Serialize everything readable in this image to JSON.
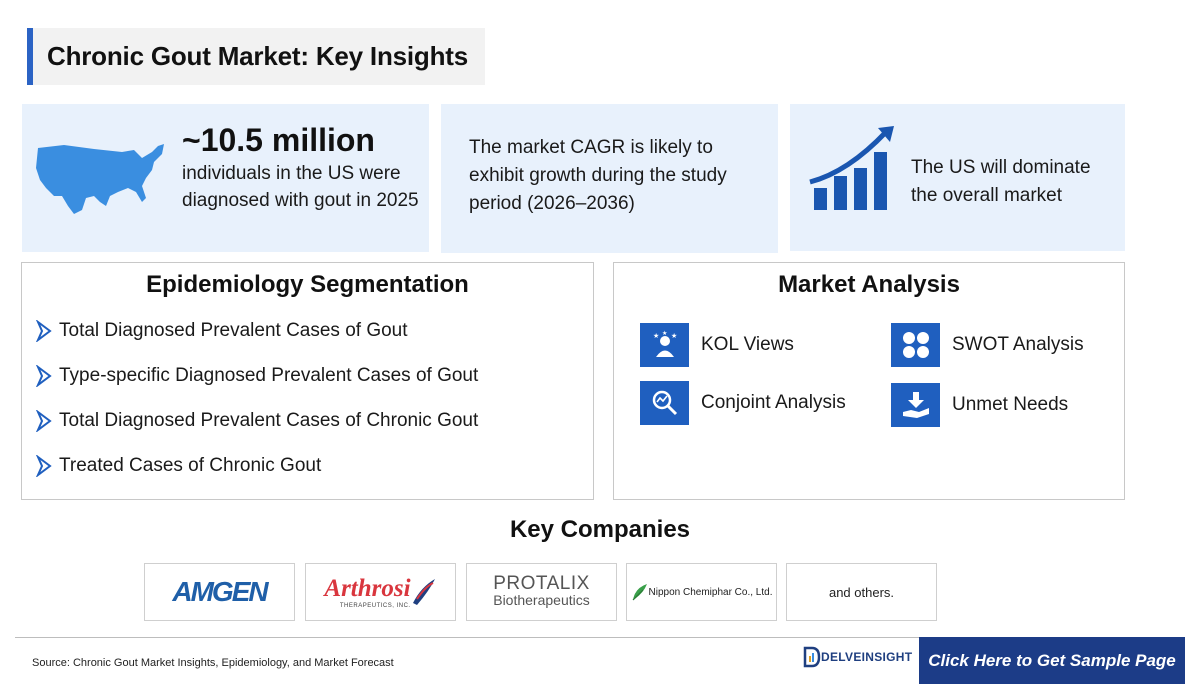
{
  "title": "Chronic Gout Market: Key Insights",
  "stats": {
    "big_number": "~10.5 million",
    "card1_text": "individuals in the US were diagnosed with gout in 2025",
    "card2_text": "The market CAGR is likely to exhibit growth during the study period (2026–2036)",
    "card3_text": "The US will dominate the overall market"
  },
  "epidemiology": {
    "title": "Epidemiology Segmentation",
    "items": [
      "Total Diagnosed Prevalent Cases of Gout",
      "Type-specific Diagnosed Prevalent Cases of Gout",
      "Total Diagnosed Prevalent Cases of Chronic Gout",
      "Treated Cases of Chronic Gout"
    ]
  },
  "market_analysis": {
    "title": "Market Analysis",
    "items": [
      {
        "label": "KOL Views",
        "icon": "kol-icon"
      },
      {
        "label": "SWOT Analysis",
        "icon": "swot-icon"
      },
      {
        "label": "Conjoint Analysis",
        "icon": "conjoint-icon"
      },
      {
        "label": "Unmet Needs",
        "icon": "unmet-needs-icon"
      }
    ]
  },
  "key_companies": {
    "title": "Key Companies",
    "amgen": "AMGEN",
    "arthrosi": "Arthrosi",
    "arthrosi_sub": "THERAPEUTICS, INC.",
    "protalix": "PROTALIX",
    "protalix_sub": "Biotherapeutics",
    "nippon": "Nippon Chemiphar Co., Ltd.",
    "others": "and others."
  },
  "footer": {
    "source": "Source: Chronic Gout Market Insights, Epidemiology, and Market Forecast",
    "brand": "DELVEINSIGHT",
    "cta": "Click Here to Get Sample Page"
  },
  "colors": {
    "accent": "#2b63c4",
    "icon_blue": "#1f5fbf",
    "card_bg": "#e8f1fc",
    "cta_bg": "#1c3c87",
    "arthrosi_red": "#d9363e"
  }
}
